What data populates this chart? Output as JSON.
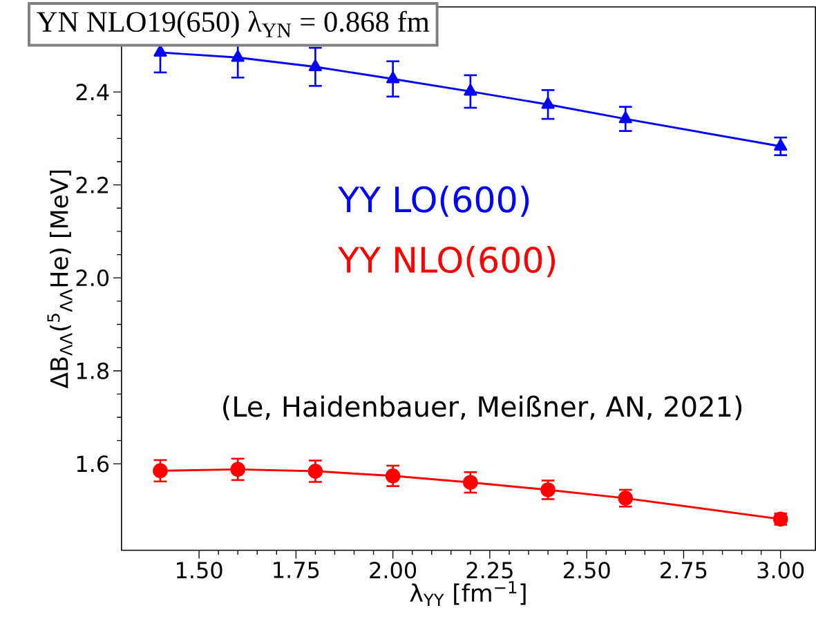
{
  "chart_data": {
    "type": "line",
    "xlabel": "λ$_{YY}$ [fm$^{−1}$]",
    "ylabel": "ΔB$_{ΛΛ}$($^{5}$$_{ΛΛ}$He) [MeV]",
    "x": [
      1.4,
      1.6,
      1.8,
      2.0,
      2.2,
      2.4,
      2.6,
      3.0
    ],
    "series": [
      {
        "name": "YY LO(600)",
        "color": "#0000ff",
        "marker": "triangle",
        "values": [
          2.485,
          2.474,
          2.454,
          2.428,
          2.401,
          2.373,
          2.342,
          2.283
        ],
        "errors": [
          0.043,
          0.043,
          0.041,
          0.038,
          0.035,
          0.031,
          0.026,
          0.019
        ]
      },
      {
        "name": "YY NLO(600)",
        "color": "#ff0000",
        "marker": "circle",
        "values": [
          1.585,
          1.588,
          1.584,
          1.574,
          1.56,
          1.544,
          1.526,
          1.481
        ],
        "errors": [
          0.023,
          0.023,
          0.023,
          0.022,
          0.022,
          0.02,
          0.018,
          0.012
        ]
      }
    ],
    "xlim": [
      1.3,
      3.09
    ],
    "ylim": [
      1.414,
      2.583
    ],
    "xticks": [
      {
        "value": 1.5,
        "label": "1.50"
      },
      {
        "value": 1.75,
        "label": "1.75"
      },
      {
        "value": 2.0,
        "label": "2.00"
      },
      {
        "value": 2.25,
        "label": "2.25"
      },
      {
        "value": 2.5,
        "label": "2.50"
      },
      {
        "value": 2.75,
        "label": "2.75"
      },
      {
        "value": 3.0,
        "label": "3.00"
      }
    ],
    "yticks": [
      1.6,
      1.8,
      {
        "value": 2.0,
        "label": "2.0"
      },
      2.2,
      2.4
    ],
    "annotations": [
      "YN NLO19(650)  λ$_{YN}$ = 0.868 fm",
      "(Le, Haidenbauer, Meißner, AN, 2021)"
    ],
    "line_style": "solid"
  }
}
